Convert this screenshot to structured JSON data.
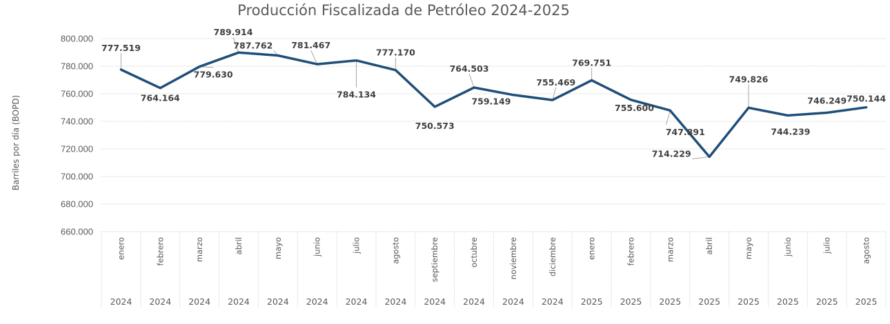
{
  "chart_data": {
    "type": "line",
    "title": "Producción Fiscalizada de Petróleo 2024-2025",
    "xlabel": "",
    "ylabel": "Barriles por día (BOPD)",
    "ylim": [
      660000,
      800000
    ],
    "yticks": [
      660000,
      680000,
      700000,
      720000,
      740000,
      760000,
      780000,
      800000
    ],
    "ytick_labels": [
      "660.000",
      "680.000",
      "700.000",
      "720.000",
      "740.000",
      "760.000",
      "780.000",
      "800.000"
    ],
    "grid": true,
    "legend": "none",
    "categories": [
      {
        "month": "enero",
        "year": "2024"
      },
      {
        "month": "febrero",
        "year": "2024"
      },
      {
        "month": "marzo",
        "year": "2024"
      },
      {
        "month": "abril",
        "year": "2024"
      },
      {
        "month": "mayo",
        "year": "2024"
      },
      {
        "month": "junio",
        "year": "2024"
      },
      {
        "month": "julio",
        "year": "2024"
      },
      {
        "month": "agosto",
        "year": "2024"
      },
      {
        "month": "septiembre",
        "year": "2024"
      },
      {
        "month": "octubre",
        "year": "2024"
      },
      {
        "month": "noviembre",
        "year": "2024"
      },
      {
        "month": "diciembre",
        "year": "2024"
      },
      {
        "month": "enero",
        "year": "2025"
      },
      {
        "month": "febrero",
        "year": "2025"
      },
      {
        "month": "marzo",
        "year": "2025"
      },
      {
        "month": "abril",
        "year": "2025"
      },
      {
        "month": "mayo",
        "year": "2025"
      },
      {
        "month": "junio",
        "year": "2025"
      },
      {
        "month": "julio",
        "year": "2025"
      },
      {
        "month": "agosto",
        "year": "2025"
      }
    ],
    "series": [
      {
        "name": "Producción Fiscalizada",
        "color": "#1f4e79",
        "values": [
          777519,
          764164,
          779630,
          789914,
          787762,
          781467,
          784134,
          777170,
          750573,
          764503,
          759149,
          755469,
          769751,
          755600,
          747891,
          714229,
          749826,
          744239,
          746249,
          750144
        ],
        "labels": [
          "777.519",
          "764.164",
          "779.630",
          "789.914",
          "787.762",
          "781.467",
          "784.134",
          "777.170",
          "750.573",
          "764.503",
          "759.149",
          "755.469",
          "769.751",
          "755.600",
          "747.891",
          "714.229",
          "749.826",
          "744.239",
          "746.249",
          "750.144"
        ]
      }
    ]
  },
  "colors": {
    "text": "#595959",
    "data_label": "#404040",
    "grid": "#d0d0d0",
    "leader": "#a6a6a6"
  }
}
